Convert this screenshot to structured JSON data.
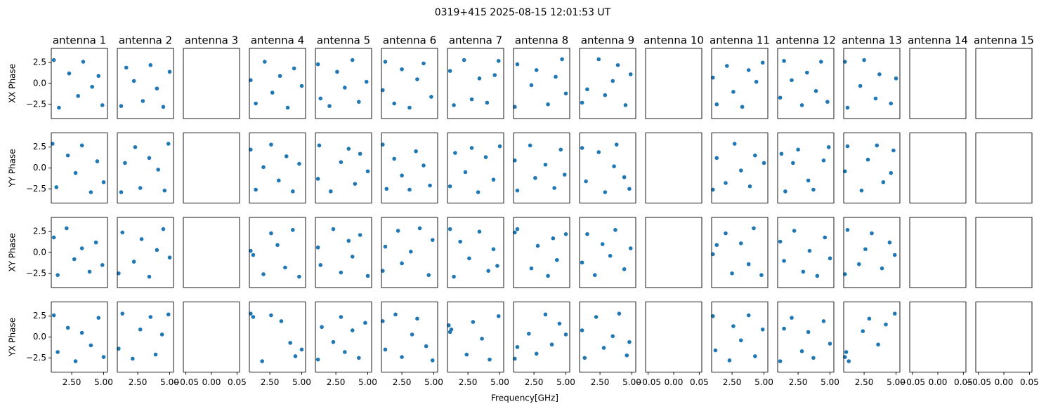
{
  "chart_data": {
    "type": "scatter",
    "title": "0319+415 2025-08-15 12:01:53 UT",
    "xlabel": "Frequency[GHz]",
    "rows": [
      "XX Phase",
      "YY Phase",
      "XY Phase",
      "YX Phase"
    ],
    "columns": [
      "antenna 1",
      "antenna 2",
      "antenna 3",
      "antenna 4",
      "antenna 5",
      "antenna 6",
      "antenna 7",
      "antenna 8",
      "antenna 9",
      "antenna 10",
      "antenna 11",
      "antenna 12",
      "antenna 13",
      "antenna 14",
      "antenna 15"
    ],
    "color": "#1f77b4",
    "ylim": [
      -4.2,
      4.2
    ],
    "yticks": [
      {
        "value": -2.5,
        "label": "−2.5"
      },
      {
        "value": 0,
        "label": "0.0"
      },
      2.5
    ],
    "xlim": [
      0.9,
      5.3
    ],
    "xticks": [
      {
        "value": 2.5,
        "label": "2.50"
      },
      {
        "value": 5,
        "label": "5.00"
      }
    ],
    "empty_xlim": [
      -0.055,
      0.055
    ],
    "empty_xticks": [
      {
        "value": -0.05,
        "label": "−0.05"
      },
      {
        "value": 0,
        "label": "0.00"
      },
      0.05
    ],
    "panels": [
      [
        {
          "x": [
            1.1,
            1.5,
            2.3,
            3.0,
            3.4,
            4.1,
            4.6,
            4.9
          ],
          "y": [
            2.8,
            -2.9,
            1.2,
            -1.5,
            2.6,
            -0.4,
            0.9,
            -2.6
          ]
        },
        {
          "x": [
            1.2,
            1.6,
            2.2,
            2.9,
            3.5,
            4.0,
            4.5,
            5.0
          ],
          "y": [
            -2.7,
            1.9,
            0.3,
            -2.1,
            2.2,
            -0.6,
            -2.8,
            1.4
          ]
        },
        null,
        {
          "x": [
            1.0,
            1.4,
            2.1,
            2.7,
            3.3,
            3.9,
            4.4,
            5.0
          ],
          "y": [
            0.4,
            -2.4,
            2.6,
            -1.1,
            0.9,
            -2.9,
            1.8,
            -0.3
          ]
        },
        {
          "x": [
            1.1,
            1.3,
            2.0,
            2.6,
            3.2,
            3.8,
            4.3,
            4.9
          ],
          "y": [
            2.3,
            -1.8,
            -2.7,
            1.4,
            -0.5,
            2.8,
            -2.2,
            0.2
          ]
        },
        {
          "x": [
            1.0,
            1.2,
            1.9,
            2.5,
            3.1,
            3.7,
            4.2,
            4.8
          ],
          "y": [
            -0.8,
            2.6,
            -2.4,
            1.7,
            -2.9,
            0.5,
            2.4,
            -1.6
          ]
        },
        {
          "x": [
            1.1,
            1.4,
            2.2,
            2.8,
            3.4,
            4.0,
            4.6,
            4.9
          ],
          "y": [
            1.5,
            -2.6,
            2.8,
            -1.9,
            0.6,
            -2.3,
            1.0,
            2.7
          ]
        },
        {
          "x": [
            1.0,
            1.2,
            2.3,
            2.7,
            3.6,
            4.2,
            4.7,
            5.0
          ],
          "y": [
            -2.8,
            2.3,
            -0.2,
            1.6,
            -2.5,
            0.8,
            2.9,
            -1.2
          ]
        },
        {
          "x": [
            1.1,
            1.5,
            2.4,
            2.9,
            3.5,
            3.9,
            4.5,
            4.9
          ],
          "y": [
            -2.3,
            -0.7,
            2.9,
            -1.4,
            0.3,
            2.2,
            -2.6,
            1.1
          ]
        },
        null,
        {
          "x": [
            1.0,
            1.3,
            2.1,
            2.6,
            3.3,
            3.8,
            4.4,
            4.9
          ],
          "y": [
            0.7,
            -2.5,
            2.1,
            -1.0,
            -2.8,
            1.6,
            0.2,
            2.5
          ]
        },
        {
          "x": [
            1.1,
            1.4,
            2.0,
            2.8,
            3.2,
            3.9,
            4.3,
            4.8
          ],
          "y": [
            -1.7,
            2.7,
            0.4,
            -2.6,
            1.3,
            -0.9,
            2.6,
            -2.2
          ]
        },
        {
          "x": [
            1.0,
            1.2,
            2.2,
            2.5,
            3.4,
            3.7,
            4.6,
            5.0
          ],
          "y": [
            2.6,
            -2.9,
            -0.3,
            2.8,
            -1.8,
            1.1,
            -2.4,
            0.6
          ]
        },
        null,
        null
      ],
      [
        {
          "x": [
            1.0,
            1.3,
            2.2,
            2.8,
            3.3,
            4.0,
            4.5,
            5.0
          ],
          "y": [
            2.9,
            -2.3,
            1.5,
            -0.6,
            2.7,
            -2.9,
            0.8,
            -1.7
          ]
        },
        {
          "x": [
            1.2,
            1.5,
            2.3,
            2.7,
            3.4,
            4.1,
            4.6,
            4.9
          ],
          "y": [
            -2.9,
            0.6,
            2.5,
            -2.4,
            1.2,
            -0.2,
            -2.7,
            2.9
          ]
        },
        null,
        {
          "x": [
            1.0,
            1.4,
            2.0,
            2.6,
            3.2,
            3.8,
            4.3,
            4.8
          ],
          "y": [
            2.2,
            -2.6,
            0.1,
            2.8,
            -1.5,
            1.4,
            -2.8,
            0.5
          ]
        },
        {
          "x": [
            1.1,
            1.2,
            2.1,
            2.9,
            3.5,
            4.0,
            4.4,
            5.0
          ],
          "y": [
            -1.3,
            2.7,
            -2.8,
            0.7,
            2.3,
            -1.9,
            1.7,
            -0.4
          ]
        },
        {
          "x": [
            1.0,
            1.3,
            1.9,
            2.5,
            3.1,
            3.6,
            4.2,
            4.7
          ],
          "y": [
            2.8,
            -2.5,
            1.1,
            -0.9,
            -2.6,
            2.0,
            0.3,
            -2.1
          ]
        },
        {
          "x": [
            1.1,
            1.5,
            2.3,
            2.8,
            3.3,
            3.9,
            4.5,
            5.0
          ],
          "y": [
            -2.2,
            1.8,
            -0.5,
            2.4,
            -2.9,
            1.3,
            -1.4,
            2.6
          ]
        },
        {
          "x": [
            1.0,
            1.2,
            2.2,
            2.6,
            3.4,
            4.1,
            4.6,
            4.9
          ],
          "y": [
            0.9,
            -2.7,
            2.7,
            -1.2,
            0.4,
            -2.4,
            2.2,
            -0.8
          ]
        },
        {
          "x": [
            1.1,
            1.4,
            2.4,
            2.9,
            3.6,
            3.8,
            4.4,
            4.8
          ],
          "y": [
            2.4,
            -1.6,
            1.9,
            -2.9,
            0.2,
            2.8,
            -1.1,
            -2.5
          ]
        },
        null,
        {
          "x": [
            1.0,
            1.3,
            2.0,
            2.7,
            3.2,
            3.9,
            4.3,
            5.0
          ],
          "y": [
            -2.6,
            1.2,
            -1.8,
            2.9,
            -0.3,
            -2.2,
            1.5,
            0.6
          ]
        },
        {
          "x": [
            1.2,
            1.5,
            2.1,
            2.5,
            3.3,
            3.7,
            4.5,
            4.9
          ],
          "y": [
            1.7,
            -2.8,
            0.6,
            2.2,
            -1.5,
            -2.6,
            0.9,
            2.5
          ]
        },
        {
          "x": [
            1.0,
            1.2,
            2.3,
            2.8,
            3.5,
            4.0,
            4.6,
            4.8
          ],
          "y": [
            -0.4,
            2.6,
            -2.7,
            1.0,
            2.7,
            -1.7,
            -0.6,
            2.1
          ]
        },
        null,
        null
      ],
      [
        {
          "x": [
            1.1,
            1.4,
            2.1,
            2.7,
            3.3,
            3.9,
            4.4,
            4.9
          ],
          "y": [
            1.8,
            -2.7,
            2.9,
            -0.8,
            0.5,
            -2.3,
            1.2,
            -1.5
          ]
        },
        {
          "x": [
            1.0,
            1.3,
            2.2,
            2.8,
            3.4,
            4.0,
            4.5,
            5.0
          ],
          "y": [
            -2.5,
            2.4,
            -1.1,
            1.6,
            -2.9,
            0.3,
            2.8,
            -0.6
          ]
        },
        null,
        {
          "x": [
            1.0,
            1.2,
            2.0,
            2.6,
            3.1,
            3.7,
            4.3,
            4.8
          ],
          "y": [
            0.2,
            -0.3,
            -2.6,
            2.3,
            0.9,
            -1.8,
            2.7,
            -2.9
          ]
        },
        {
          "x": [
            1.1,
            1.3,
            2.3,
            2.9,
            3.5,
            3.8,
            4.4,
            5.0
          ],
          "y": [
            0.6,
            -1.5,
            2.8,
            -2.4,
            1.4,
            -0.5,
            2.1,
            -2.8
          ]
        },
        {
          "x": [
            1.0,
            1.2,
            2.2,
            2.5,
            3.2,
            3.9,
            4.6,
            4.9
          ],
          "y": [
            -2.2,
            0.7,
            2.6,
            -1.3,
            0.1,
            2.9,
            -2.7,
            1.5
          ]
        },
        {
          "x": [
            1.1,
            1.4,
            1.9,
            2.6,
            3.4,
            4.1,
            4.5,
            4.8
          ],
          "y": [
            2.8,
            -2.9,
            1.3,
            -0.7,
            2.5,
            -2.2,
            0.4,
            -1.6
          ]
        },
        {
          "x": [
            1.0,
            1.2,
            2.3,
            2.8,
            3.6,
            4.0,
            4.3,
            5.0
          ],
          "y": [
            2.4,
            2.8,
            -1.9,
            0.8,
            -2.8,
            1.7,
            -0.9,
            2.2
          ]
        },
        {
          "x": [
            1.1,
            1.5,
            2.1,
            2.7,
            3.3,
            3.7,
            4.4,
            4.9
          ],
          "y": [
            -1.2,
            2.2,
            -2.7,
            1.0,
            -0.4,
            2.7,
            -2.0,
            0.5
          ]
        },
        null,
        {
          "x": [
            1.0,
            1.3,
            2.0,
            2.5,
            3.2,
            3.8,
            4.2,
            4.8
          ],
          "y": [
            -0.2,
            0.9,
            2.3,
            -2.5,
            1.1,
            -1.4,
            2.9,
            -2.7
          ]
        },
        {
          "x": [
            1.1,
            1.4,
            2.2,
            2.9,
            3.4,
            4.0,
            4.6,
            5.0
          ],
          "y": [
            1.3,
            -1.0,
            2.6,
            -2.3,
            0.2,
            -2.8,
            1.8,
            -0.7
          ]
        },
        {
          "x": [
            1.0,
            1.2,
            2.1,
            2.6,
            3.1,
            3.9,
            4.5,
            4.9
          ],
          "y": [
            -2.6,
            2.7,
            -1.4,
            0.4,
            2.3,
            -1.9,
            1.2,
            -0.3
          ]
        },
        null,
        null
      ],
      [
        {
          "x": [
            1.1,
            1.4,
            2.2,
            2.8,
            3.3,
            4.0,
            4.6,
            5.0
          ],
          "y": [
            2.6,
            -1.8,
            1.1,
            -2.9,
            0.5,
            -1.0,
            2.3,
            -2.4
          ]
        },
        {
          "x": [
            1.0,
            1.3,
            2.1,
            2.7,
            3.5,
            3.9,
            4.4,
            4.9
          ],
          "y": [
            -1.4,
            2.8,
            -2.6,
            0.9,
            2.4,
            -2.1,
            0.3,
            2.7
          ]
        },
        null,
        {
          "x": [
            1.0,
            1.2,
            1.9,
            2.6,
            3.4,
            4.1,
            4.5,
            5.0
          ],
          "y": [
            2.8,
            2.4,
            -2.9,
            2.6,
            1.9,
            -0.7,
            -2.3,
            -1.5
          ]
        },
        {
          "x": [
            1.1,
            1.4,
            2.3,
            2.9,
            3.2,
            3.8,
            4.3,
            4.8
          ],
          "y": [
            -2.7,
            1.2,
            -0.6,
            2.4,
            -1.8,
            0.8,
            -2.5,
            1.7
          ]
        },
        {
          "x": [
            1.0,
            1.2,
            2.0,
            2.5,
            3.3,
            3.7,
            4.4,
            4.9
          ],
          "y": [
            1.9,
            -1.5,
            2.7,
            -2.4,
            0.3,
            2.2,
            -1.1,
            -2.8
          ]
        },
        {
          "x": [
            1.0,
            1.1,
            1.2,
            2.4,
            2.9,
            3.6,
            4.2,
            4.9
          ],
          "y": [
            1.4,
            0.6,
            0.9,
            -2.1,
            1.8,
            -0.2,
            -2.7,
            2.5
          ]
        },
        {
          "x": [
            1.0,
            1.2,
            2.1,
            2.7,
            3.4,
            3.9,
            4.5,
            5.0
          ],
          "y": [
            -2.6,
            -1.2,
            0.4,
            -2.0,
            2.7,
            -0.9,
            1.6,
            0.3
          ]
        },
        {
          "x": [
            1.1,
            1.3,
            2.2,
            2.8,
            3.5,
            4.0,
            4.6,
            4.8
          ],
          "y": [
            0.8,
            -2.5,
            2.4,
            -1.3,
            0.1,
            2.8,
            -2.2,
            -0.6
          ]
        },
        null,
        {
          "x": [
            1.0,
            1.2,
            2.3,
            2.6,
            3.2,
            3.8,
            4.3,
            4.9
          ],
          "y": [
            2.5,
            -1.6,
            -2.8,
            1.3,
            -0.4,
            2.6,
            -2.3,
            0.9
          ]
        },
        {
          "x": [
            1.1,
            1.4,
            2.0,
            2.8,
            3.3,
            3.7,
            4.5,
            5.0
          ],
          "y": [
            -2.9,
            1.0,
            2.3,
            -1.7,
            0.6,
            -2.5,
            1.9,
            -0.8
          ]
        },
        {
          "x": [
            1.0,
            1.1,
            1.3,
            2.4,
            2.9,
            3.6,
            4.2,
            4.9
          ],
          "y": [
            -2.4,
            -1.8,
            -2.9,
            0.7,
            2.2,
            -0.9,
            1.5,
            2.8
          ]
        },
        null,
        null
      ]
    ]
  }
}
